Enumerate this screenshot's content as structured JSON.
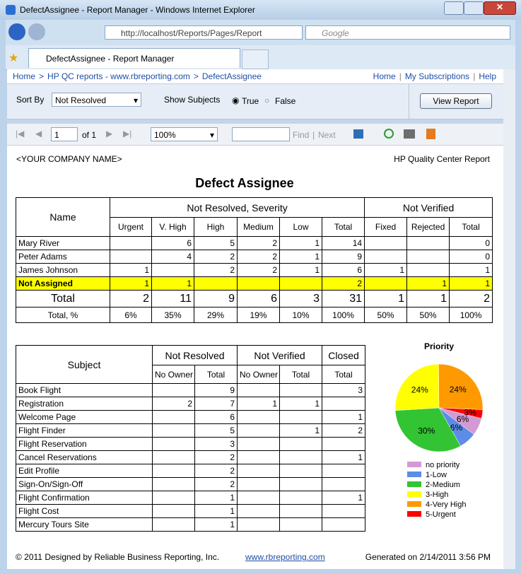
{
  "window": {
    "title": "DefectAssignee - Report Manager - Windows Internet Explorer",
    "address": "http://localhost/Reports/Pages/Report",
    "search": "Google",
    "tab": "DefectAssignee - Report Manager"
  },
  "nav": {
    "breadcrumb": [
      "Home",
      "HP QC reports - www.rbreporting.com",
      "DefectAssignee"
    ],
    "breadcrumb_separator": ">",
    "links": [
      "Home",
      "My Subscriptions",
      "Help"
    ],
    "links_separator": "|"
  },
  "params": {
    "sort_label": "Sort By",
    "sort_value": "Not Resolved",
    "subjects_label": "Show Subjects",
    "true_label": "True",
    "false_label": "False",
    "button": "View Report"
  },
  "toolbar": {
    "page": "1",
    "of": "of 1",
    "zoom": "100%",
    "find": "Find",
    "separator": "|",
    "next": "Next"
  },
  "report": {
    "company": "<YOUR COMPANY NAME>",
    "source": "HP Quality Center Report",
    "title": "Defect Assignee",
    "table1": {
      "name_header": "Name",
      "groups": [
        "Not Resolved, Severity",
        "Not Verified"
      ],
      "columns": [
        "Urgent",
        "V. High",
        "High",
        "Medium",
        "Low",
        "Total",
        "Fixed",
        "Rejected",
        "Total"
      ],
      "rows": [
        {
          "name": "Mary River",
          "cells": [
            null,
            6,
            5,
            2,
            1,
            14,
            null,
            null,
            0
          ]
        },
        {
          "name": "Peter Adams",
          "cells": [
            null,
            4,
            2,
            2,
            1,
            9,
            null,
            null,
            0
          ]
        },
        {
          "name": "James Johnson",
          "cells": [
            1,
            null,
            2,
            2,
            1,
            6,
            1,
            null,
            1
          ]
        },
        {
          "name": "Not Assigned",
          "highlight": true,
          "cells": [
            1,
            1,
            null,
            null,
            null,
            2,
            null,
            1,
            1
          ]
        }
      ],
      "total": {
        "name": "Total",
        "cells": [
          2,
          11,
          9,
          6,
          3,
          31,
          1,
          1,
          2
        ]
      },
      "percent": {
        "name": "Total, %",
        "cells": [
          "6%",
          "35%",
          "29%",
          "19%",
          "10%",
          "100%",
          "50%",
          "50%",
          "100%"
        ]
      }
    },
    "table2": {
      "name_header": "Subject",
      "groups": [
        "Not Resolved",
        "Not Verified",
        "Closed"
      ],
      "columns": [
        "No Owner",
        "Total",
        "No Owner",
        "Total",
        "Total"
      ],
      "rows": [
        {
          "name": "Book Flight",
          "cells": [
            null,
            9,
            null,
            null,
            3
          ]
        },
        {
          "name": "Registration",
          "cells": [
            2,
            7,
            1,
            1,
            null
          ]
        },
        {
          "name": "Welcome Page",
          "cells": [
            null,
            6,
            null,
            null,
            1
          ]
        },
        {
          "name": "Flight Finder",
          "cells": [
            null,
            5,
            null,
            1,
            2
          ]
        },
        {
          "name": "Flight Reservation",
          "cells": [
            null,
            3,
            null,
            null,
            null
          ]
        },
        {
          "name": "Cancel Reservations",
          "cells": [
            null,
            2,
            null,
            null,
            1
          ]
        },
        {
          "name": "Edit Profile",
          "cells": [
            null,
            2,
            null,
            null,
            null
          ]
        },
        {
          "name": "Sign-On/Sign-Off",
          "cells": [
            null,
            2,
            null,
            null,
            null
          ]
        },
        {
          "name": "Flight Confirmation",
          "cells": [
            null,
            1,
            null,
            null,
            1
          ]
        },
        {
          "name": "Flight Cost",
          "cells": [
            null,
            1,
            null,
            null,
            null
          ]
        },
        {
          "name": "Mercury Tours Site",
          "cells": [
            null,
            1,
            null,
            null,
            null
          ]
        }
      ]
    },
    "footer": {
      "copyright": "© 2011 Designed by Reliable Business Reporting, Inc.",
      "link": "www.rbreporting.com",
      "generated": "Generated on 2/14/2011 3:56 PM"
    }
  },
  "chart_data": {
    "type": "pie",
    "title": "Priority",
    "categories": [
      "no priority",
      "1-Low",
      "2-Medium",
      "3-High",
      "4-Very High",
      "5-Urgent"
    ],
    "values": [
      6,
      6,
      30,
      24,
      24,
      3
    ],
    "value_labels": [
      "6%",
      "6%",
      "30%",
      "24%",
      "24%",
      "3%"
    ],
    "colors": [
      "#d49ad4",
      "#5b8de8",
      "#33c433",
      "#ffff00",
      "#ff9900",
      "#ff0000"
    ]
  }
}
